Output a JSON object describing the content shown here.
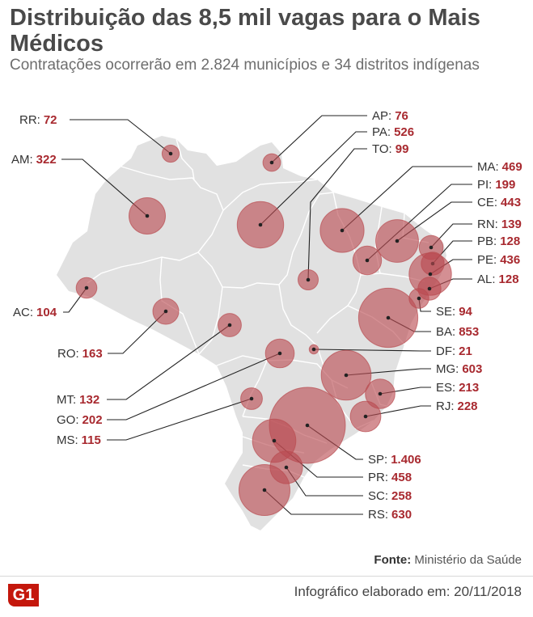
{
  "header": {
    "title": "Distribuição das 8,5 mil vagas para o Mais Médicos",
    "subtitle": "Contratações ocorrerão em 2.824 municípios e 34 distritos indígenas"
  },
  "colors": {
    "bubble": "#b94b50",
    "value_text": "#a8292f",
    "map_fill": "#e1e1e1",
    "map_border": "#ffffff",
    "brand": "#c4170c"
  },
  "states": [
    {
      "code": "RR",
      "label": "RR:",
      "value": "72",
      "n": 72
    },
    {
      "code": "AM",
      "label": "AM:",
      "value": "322",
      "n": 322
    },
    {
      "code": "AC",
      "label": "AC:",
      "value": "104",
      "n": 104
    },
    {
      "code": "RO",
      "label": "RO:",
      "value": "163",
      "n": 163
    },
    {
      "code": "MT",
      "label": "MT:",
      "value": "132",
      "n": 132
    },
    {
      "code": "GO",
      "label": "GO:",
      "value": "202",
      "n": 202
    },
    {
      "code": "MS",
      "label": "MS:",
      "value": "115",
      "n": 115
    },
    {
      "code": "AP",
      "label": "AP:",
      "value": "76",
      "n": 76
    },
    {
      "code": "PA",
      "label": "PA:",
      "value": "526",
      "n": 526
    },
    {
      "code": "TO",
      "label": "TO:",
      "value": "99",
      "n": 99
    },
    {
      "code": "MA",
      "label": "MA:",
      "value": "469",
      "n": 469
    },
    {
      "code": "PI",
      "label": "PI:",
      "value": "199",
      "n": 199
    },
    {
      "code": "CE",
      "label": "CE:",
      "value": "443",
      "n": 443
    },
    {
      "code": "RN",
      "label": "RN:",
      "value": "139",
      "n": 139
    },
    {
      "code": "PB",
      "label": "PB:",
      "value": "128",
      "n": 128
    },
    {
      "code": "PE",
      "label": "PE:",
      "value": "436",
      "n": 436
    },
    {
      "code": "AL",
      "label": "AL:",
      "value": "128",
      "n": 128
    },
    {
      "code": "SE",
      "label": "SE:",
      "value": "94",
      "n": 94
    },
    {
      "code": "BA",
      "label": "BA:",
      "value": "853",
      "n": 853
    },
    {
      "code": "DF",
      "label": "DF:",
      "value": "21",
      "n": 21
    },
    {
      "code": "MG",
      "label": "MG:",
      "value": "603",
      "n": 603
    },
    {
      "code": "ES",
      "label": "ES:",
      "value": "213",
      "n": 213
    },
    {
      "code": "RJ",
      "label": "RJ:",
      "value": "228",
      "n": 228
    },
    {
      "code": "SP",
      "label": "SP:",
      "value": "1.406",
      "n": 1406
    },
    {
      "code": "PR",
      "label": "PR:",
      "value": "458",
      "n": 458
    },
    {
      "code": "SC",
      "label": "SC:",
      "value": "258",
      "n": 258
    },
    {
      "code": "RS",
      "label": "RS:",
      "value": "630",
      "n": 630
    }
  ],
  "footer": {
    "source_label": "Fonte:",
    "source_text": "Ministério da Saúde",
    "logo_text": "G1",
    "credit": "Infográfico elaborado em: 20/11/2018"
  }
}
